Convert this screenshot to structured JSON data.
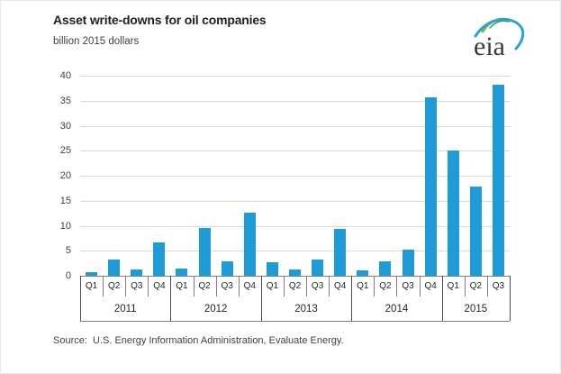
{
  "header": {
    "title": "Asset write-downs for oil companies",
    "subtitle": "billion 2015 dollars"
  },
  "logo": {
    "name": "eia-logo",
    "text": "eia"
  },
  "source": {
    "text": "Source:  U.S. Energy Information Administration, Evaluate Energy."
  },
  "colors": {
    "bar": "#1f9cd8",
    "gridline": "#d9d9d9",
    "axis_line": "#7f7f7f",
    "year_separator": "#4d4d4d",
    "text_dark": "#262626",
    "text_gray": "#404040",
    "logo_green": "#7fb541",
    "logo_blue": "#29a3d7"
  },
  "chart_data": {
    "type": "bar",
    "title": "Asset write-downs for oil companies",
    "subtitle": "billion 2015 dollars",
    "xlabel": "",
    "ylabel": "billion 2015 dollars",
    "ylim": [
      0,
      40
    ],
    "y_ticks": [
      0,
      5,
      10,
      15,
      20,
      25,
      30,
      35,
      40
    ],
    "grid": "horizontal",
    "legend": "none",
    "categories": [
      "Q1",
      "Q2",
      "Q3",
      "Q4",
      "Q1",
      "Q2",
      "Q3",
      "Q4",
      "Q1",
      "Q2",
      "Q3",
      "Q4",
      "Q1",
      "Q2",
      "Q3",
      "Q4",
      "Q1",
      "Q2",
      "Q3"
    ],
    "year_groups": [
      {
        "label": "2011",
        "quarters": [
          "Q1",
          "Q2",
          "Q3",
          "Q4"
        ]
      },
      {
        "label": "2012",
        "quarters": [
          "Q1",
          "Q2",
          "Q3",
          "Q4"
        ]
      },
      {
        "label": "2013",
        "quarters": [
          "Q1",
          "Q2",
          "Q3",
          "Q4"
        ]
      },
      {
        "label": "2014",
        "quarters": [
          "Q1",
          "Q2",
          "Q3",
          "Q4"
        ]
      },
      {
        "label": "2015",
        "quarters": [
          "Q1",
          "Q2",
          "Q3"
        ]
      }
    ],
    "series": [
      {
        "name": "Asset write-downs",
        "values": [
          0.8,
          3.2,
          1.2,
          6.7,
          1.4,
          9.5,
          2.8,
          12.6,
          2.7,
          1.2,
          3.3,
          9.3,
          1.0,
          2.8,
          5.3,
          35.6,
          25.1,
          17.9,
          38.2
        ]
      }
    ]
  }
}
